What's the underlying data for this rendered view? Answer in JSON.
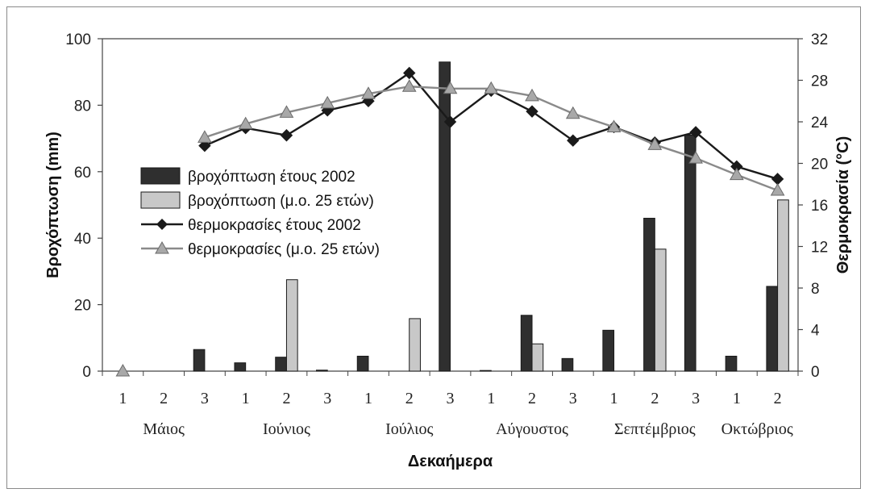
{
  "chart_data": {
    "type": "bar+line",
    "xlabel": "Δεκαήμερα",
    "ylabel_left": "Βροχόπτωση (mm)",
    "ylabel_right": "Θερμοκρασία (°C)",
    "ylim_left": [
      0,
      100
    ],
    "yticks_left": [
      "0",
      "20",
      "40",
      "60",
      "80",
      "100"
    ],
    "ylim_right": [
      0,
      32
    ],
    "yticks_right": [
      "0",
      "4",
      "8",
      "12",
      "16",
      "20",
      "24",
      "28",
      "32"
    ],
    "grid": false,
    "legend_position": "left-middle",
    "categories": [
      "1",
      "2",
      "3",
      "1",
      "2",
      "3",
      "1",
      "2",
      "3",
      "1",
      "2",
      "3",
      "1",
      "2",
      "3",
      "1",
      "2"
    ],
    "months": [
      "Μάιος",
      "Ιούνιος",
      "Ιούλιος",
      "Αύγουστος",
      "Σεπτέμβριος",
      "Οκτώβριος"
    ],
    "series": [
      {
        "name": "βροχόπτωση έτους 2002",
        "kind": "bar",
        "axis": "left",
        "color": "#2f2f2f",
        "values": [
          0,
          0,
          6.5,
          2.5,
          4.2,
          0.3,
          4.5,
          0,
          93,
          0.2,
          16.8,
          3.8,
          12.3,
          46,
          71,
          4.5,
          25.5
        ]
      },
      {
        "name": "βροχόπτωση (μ.ο. 25 ετών)",
        "kind": "bar",
        "axis": "left",
        "color": "#c8c8c8",
        "values": [
          0,
          0,
          0,
          0,
          27.5,
          0,
          0,
          15.8,
          0,
          0,
          8.2,
          0,
          0,
          36.7,
          0,
          0,
          51.5
        ]
      },
      {
        "name": "θερμοκρασίες έτους 2002",
        "kind": "line",
        "axis": "right",
        "color": "#1a1a1a",
        "marker": "diamond",
        "values": [
          null,
          null,
          21.7,
          23.4,
          22.7,
          25.1,
          26.0,
          28.7,
          24.0,
          27.0,
          25.0,
          22.2,
          23.5,
          22.0,
          23.0,
          19.7,
          18.5
        ]
      },
      {
        "name": "θερμοκρασίες  (μ.ο. 25 ετών)",
        "kind": "line",
        "axis": "right",
        "color": "#8a8a8a",
        "marker": "triangle",
        "values": [
          0,
          null,
          22.5,
          23.8,
          24.9,
          25.8,
          26.7,
          27.4,
          27.2,
          27.2,
          26.5,
          24.8,
          23.5,
          21.8,
          20.5,
          18.9,
          17.4
        ]
      }
    ]
  }
}
